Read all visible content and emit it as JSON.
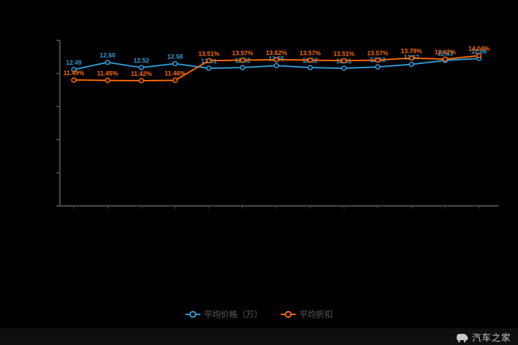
{
  "colors": {
    "background": "#000000",
    "axis": "#4a4a4a",
    "series_blue": "#2f9bd6",
    "series_orange": "#ff6a00",
    "legend_text": "#3f3f3f",
    "watermark_text": "#c9c9c9"
  },
  "chart_data": {
    "type": "line",
    "title": "",
    "xlabel": "",
    "ylabel": "",
    "grid": false,
    "legend_position": "bottom",
    "x_axis_labels_visible": false,
    "y_axis_labels_visible": false,
    "categories": [
      "",
      "",
      "",
      "",
      "",
      "",
      "",
      "",
      "",
      "",
      "",
      "",
      ""
    ],
    "series": [
      {
        "name": "平均价格（万）",
        "color": "#2f9bd6",
        "values": [
          12.49,
          12.6,
          12.52,
          12.58,
          12.51,
          12.52,
          12.55,
          12.52,
          12.51,
          12.53,
          12.57,
          12.63,
          12.66
        ],
        "labels": [
          "12.49",
          "12.60",
          "12.52",
          "12.58",
          "12.51",
          "12.52",
          "12.55",
          "12.52",
          "12.51",
          "12.53",
          "12.57",
          "12.63",
          "12.66"
        ]
      },
      {
        "name": "平均折扣",
        "color": "#ff6a00",
        "values": [
          11.49,
          11.45,
          11.42,
          11.46,
          13.51,
          13.57,
          13.62,
          13.57,
          13.51,
          13.57,
          13.79,
          13.67,
          14.04
        ],
        "labels": [
          "11.49%",
          "11.45%",
          "11.42%",
          "11.46%",
          "13.51%",
          "13.57%",
          "13.62%",
          "13.57%",
          "13.51%",
          "13.57%",
          "13.79%",
          "13.67%",
          "14.04%"
        ]
      }
    ]
  },
  "legend": {
    "item1": "平均价格（万）",
    "item2": "平均折扣"
  },
  "watermark": {
    "text": "汽车之家"
  }
}
